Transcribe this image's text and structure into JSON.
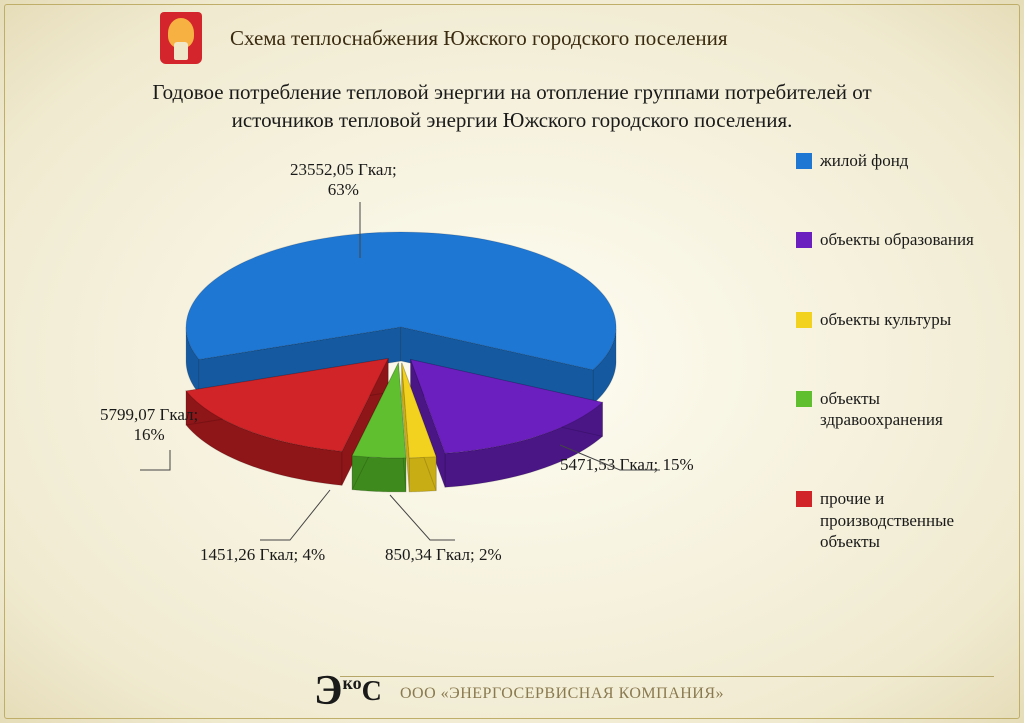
{
  "header": {
    "title": "Схема теплоснабжения Южского городского поселения"
  },
  "subtitle": "Годовое потребление тепловой энергии на отопление группами потребителей от источников тепловой энергии Южского городского поселения.",
  "chart": {
    "type": "pie-3d-exploded",
    "background_color": "#fdf9e8",
    "slices": [
      {
        "key": "housing",
        "label": "жилой фонд",
        "value_gcal": 23552.05,
        "percent": 63,
        "color": "#1f77d4",
        "side_color": "#155aa0"
      },
      {
        "key": "education",
        "label": "объекты образования",
        "value_gcal": 5471.53,
        "percent": 15,
        "color": "#6c1fbf",
        "side_color": "#4a1686"
      },
      {
        "key": "culture",
        "label": "объекты культуры",
        "value_gcal": 850.34,
        "percent": 2,
        "color": "#f2d21f",
        "side_color": "#c9ad15"
      },
      {
        "key": "health",
        "label": "объекты здравоохранения",
        "value_gcal": 1451.26,
        "percent": 4,
        "color": "#5fbf2f",
        "side_color": "#3f8a1d"
      },
      {
        "key": "other",
        "label": "прочие и производственные объекты",
        "value_gcal": 5799.07,
        "percent": 16,
        "color": "#d02428",
        "side_color": "#8e1518"
      }
    ],
    "data_label_fontsize": 17,
    "unit": "Гкал"
  },
  "labels": {
    "l_housing": "23552,05 Гкал;\n63%",
    "l_other": "5799,07 Гкал;\n16%",
    "l_education": "5471,53 Гкал; 15%",
    "l_health": "1451,26 Гкал; 4%",
    "l_culture": "850,34 Гкал; 2%"
  },
  "legend": {
    "items": [
      {
        "color": "#1f77d4",
        "text": "жилой фонд"
      },
      {
        "color": "#6c1fbf",
        "text": "объекты образования"
      },
      {
        "color": "#f2d21f",
        "text": "объекты культуры"
      },
      {
        "color": "#5fbf2f",
        "text": "объекты здравоохранения"
      },
      {
        "color": "#d02428",
        "text": "прочие и производственные объекты"
      }
    ]
  },
  "footer": {
    "company": "ООО «ЭНЕРГОСЕРВИСНАЯ КОМПАНИЯ»",
    "logo_text": "Эс"
  }
}
